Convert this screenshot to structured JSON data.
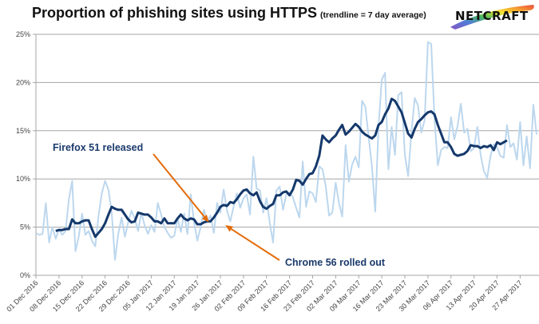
{
  "header": {
    "title": "Proportion of phishing sites using HTTPS",
    "subtitle": "(trendline = 7 day average)",
    "logo_text": "NETCRAFT"
  },
  "colors": {
    "daily": "#bcd7ee",
    "trend": "#14386b",
    "arrow": "#e36c0a",
    "grid": "#a6a6a6",
    "axis": "#a6a6a6",
    "annotation_text": "#1a3a6b"
  },
  "chart_data": {
    "type": "line",
    "title": "Proportion of phishing sites using HTTPS",
    "subtitle": "(trendline = 7 day average)",
    "xlabel": "",
    "ylabel": "",
    "ylim": [
      0,
      25
    ],
    "y_unit": "%",
    "y_ticks": [
      "0%",
      "5%",
      "10%",
      "15%",
      "20%",
      "25%"
    ],
    "y_tick_values": [
      0,
      5,
      10,
      15,
      20,
      25
    ],
    "x_ticks": [
      "01 Dec 2016",
      "08 Dec 2016",
      "15 Dec 2016",
      "22 Dec 2016",
      "29 Dec 2016",
      "05 Jan 2017",
      "12 Jan 2017",
      "19 Jan 2017",
      "26 Jan 2017",
      "02 Feb 2017",
      "09 Feb 2017",
      "16 Feb 2017",
      "23 Feb 2017",
      "02 Mar 2017",
      "09 Mar 2017",
      "16 Mar 2017",
      "23 Mar 2017",
      "30 Mar 2017",
      "06 Apr 2017",
      "13 Apr 2017",
      "20 Apr 2017",
      "27 Apr 2017"
    ],
    "x_tick_day_offsets": [
      0,
      7,
      14,
      21,
      28,
      35,
      42,
      49,
      56,
      63,
      70,
      77,
      84,
      91,
      98,
      105,
      112,
      119,
      126,
      133,
      140,
      147
    ],
    "x_range_days": [
      0,
      152
    ],
    "grid": true,
    "series": [
      {
        "name": "Daily",
        "start_day": 0,
        "values": [
          4.4,
          4.2,
          4.3,
          7.5,
          3.4,
          5.0,
          3.8,
          4.8,
          4.2,
          4.6,
          7.9,
          9.8,
          2.5,
          4.0,
          6.4,
          4.2,
          4.6,
          3.6,
          3.0,
          6.2,
          8.5,
          9.8,
          8.9,
          6.5,
          1.6,
          4.3,
          6.0,
          4.0,
          5.5,
          6.7,
          5.9,
          4.6,
          6.5,
          5.2,
          4.3,
          5.2,
          4.5,
          7.5,
          6.3,
          5.0,
          4.4,
          3.9,
          4.1,
          5.9,
          4.5,
          6.4,
          4.3,
          8.4,
          5.5,
          3.6,
          5.0,
          6.8,
          5.6,
          6.2,
          4.4,
          7.5,
          6.5,
          8.9,
          6.7,
          5.6,
          7.1,
          8.5,
          7.0,
          8.0,
          8.4,
          6.3,
          12.3,
          9.0,
          8.8,
          6.5,
          8.0,
          5.4,
          3.4,
          8.8,
          9.2,
          6.8,
          8.4,
          8.6,
          8.1,
          7.0,
          6.0,
          11.8,
          7.1,
          8.7,
          8.5,
          7.6,
          11.3,
          11.0,
          9.2,
          6.2,
          6.5,
          9.6,
          7.5,
          6.1,
          13.5,
          9.7,
          11.5,
          12.3,
          11.2,
          18.1,
          17.5,
          14.4,
          11.3,
          6.6,
          15.4,
          20.3,
          21.0,
          11.0,
          15.4,
          12.5,
          18.7,
          19.0,
          12.5,
          10.3,
          14.9,
          18.4,
          17.6,
          14.8,
          16.1,
          24.2,
          24.0,
          16.3,
          11.4,
          13.0,
          13.3,
          13.2,
          16.4,
          14.1,
          15.5,
          17.8,
          14.8,
          15.2,
          12.9,
          13.2,
          15.4,
          12.5,
          10.8,
          10.1,
          12.4,
          13.6,
          13.3,
          12.4,
          12.2,
          15.6,
          13.3,
          13.7,
          12.0,
          15.9,
          11.4,
          14.4,
          11.1,
          17.7,
          14.6
        ],
        "color": "#bcd7ee"
      },
      {
        "name": "7 day average",
        "start_day": 6,
        "values": [
          4.6,
          4.7,
          4.7,
          4.8,
          4.8,
          5.8,
          5.4,
          5.4,
          5.6,
          5.7,
          5.7,
          4.8,
          4.0,
          4.4,
          4.8,
          5.4,
          6.3,
          7.1,
          6.9,
          6.8,
          6.8,
          6.3,
          5.8,
          5.5,
          5.6,
          6.5,
          6.4,
          6.3,
          6.3,
          6.0,
          5.6,
          5.6,
          5.4,
          5.9,
          5.4,
          5.4,
          5.4,
          5.9,
          6.3,
          5.9,
          5.7,
          5.9,
          5.8,
          5.3,
          5.3,
          5.5,
          5.6,
          5.6,
          6.0,
          6.5,
          7.1,
          7.3,
          7.2,
          7.6,
          7.5,
          7.9,
          8.4,
          8.8,
          8.9,
          8.5,
          8.3,
          8.6,
          7.7,
          7.1,
          6.9,
          7.2,
          7.4,
          8.3,
          8.3,
          8.6,
          8.7,
          8.3,
          8.9,
          9.9,
          9.8,
          9.4,
          10.0,
          10.5,
          10.6,
          11.3,
          12.4,
          14.5,
          14.1,
          13.8,
          14.2,
          14.5,
          15.1,
          15.6,
          14.6,
          14.9,
          15.3,
          15.7,
          15.4,
          14.9,
          14.6,
          14.4,
          14.2,
          14.5,
          15.6,
          15.9,
          16.7,
          17.3,
          18.3,
          18.1,
          17.5,
          16.9,
          15.8,
          14.7,
          14.3,
          15.2,
          15.9,
          16.2,
          16.6,
          16.9,
          17.0,
          16.7,
          15.6,
          14.7,
          13.8,
          13.8,
          13.3,
          12.6,
          12.4,
          12.5,
          12.6,
          12.9,
          13.5,
          13.4,
          13.4,
          13.2,
          13.4,
          13.3,
          13.5,
          13.0,
          13.8,
          13.6,
          13.8,
          14.0
        ]
      }
    ],
    "annotations": [
      {
        "text": "Firefox 51 released",
        "day": 52.5,
        "value": 5.5
      },
      {
        "text": "Chrome 56 rolled out",
        "day": 57.5,
        "value": 5.2
      }
    ]
  }
}
